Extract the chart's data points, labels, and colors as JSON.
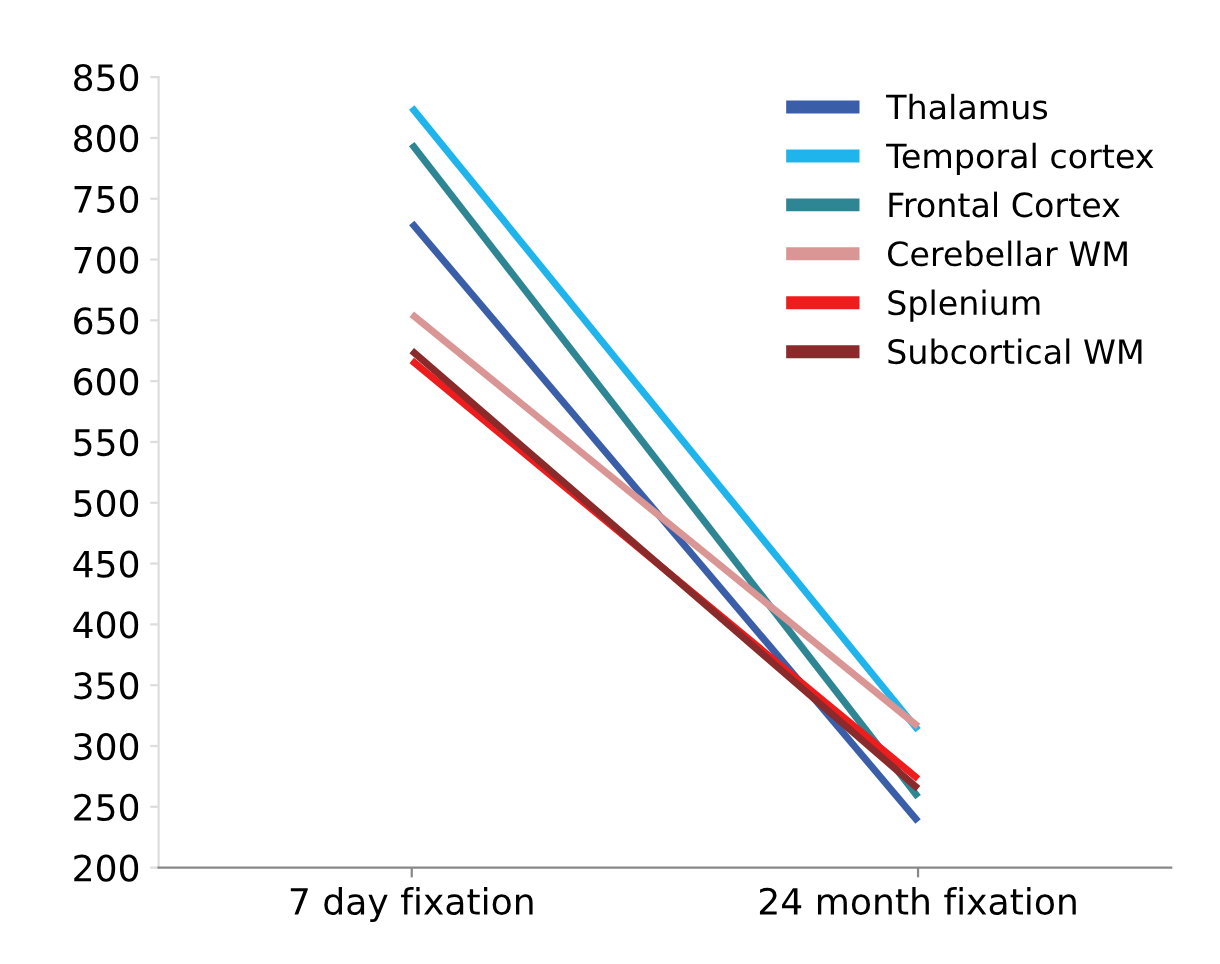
{
  "chart_data": {
    "type": "line",
    "categories": [
      "7 day fixation",
      "24 month fixation"
    ],
    "series": [
      {
        "name": "Thalamus",
        "color": "#3a5fa8",
        "values": [
          730,
          238
        ]
      },
      {
        "name": "Temporal cortex",
        "color": "#1fb4ec",
        "values": [
          825,
          313
        ]
      },
      {
        "name": "Frontal Cortex",
        "color": "#2e8593",
        "values": [
          795,
          258
        ]
      },
      {
        "name": "Cerebellar WM",
        "color": "#d99694",
        "values": [
          655,
          316
        ]
      },
      {
        "name": "Splenium",
        "color": "#ee1c1c",
        "values": [
          617,
          273
        ]
      },
      {
        "name": "Subcortical WM",
        "color": "#8b2a2a",
        "values": [
          625,
          265
        ]
      }
    ],
    "ylim": [
      200,
      850
    ],
    "yticks": [
      200,
      250,
      300,
      350,
      400,
      450,
      500,
      550,
      600,
      650,
      700,
      750,
      800,
      850
    ],
    "grid": false,
    "legend": "top right",
    "marker": "none",
    "line_style": "solid"
  }
}
